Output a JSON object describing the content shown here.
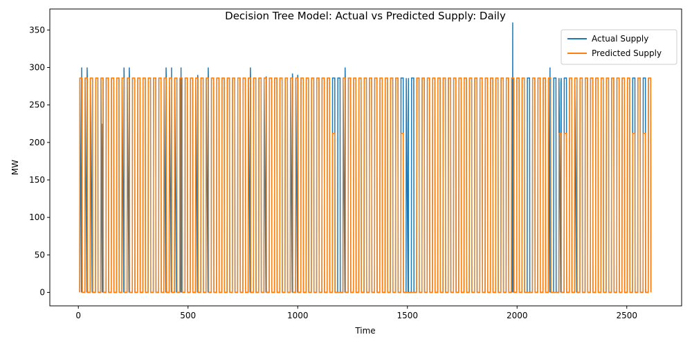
{
  "chart_data": {
    "type": "line",
    "title": "Decision Tree Model: Actual vs Predicted Supply: Daily",
    "xlabel": "Time",
    "ylabel": "MW",
    "xlim": [
      -130,
      2750
    ],
    "ylim": [
      -18,
      378
    ],
    "xticks": [
      0,
      500,
      1000,
      1500,
      2000,
      2500
    ],
    "yticks": [
      0,
      50,
      100,
      150,
      200,
      250,
      300,
      350
    ],
    "grid": false,
    "legend_position": "top-right",
    "x_range": [
      0,
      2620
    ],
    "series": [
      {
        "name": "Actual Supply",
        "color": "#1f77b4",
        "pulse_period_days": 24,
        "pulse_width_days": 12,
        "off_value": 0,
        "on_value": 286,
        "pulses": [
          {
            "x": 15,
            "y": 300
          },
          {
            "x": 40,
            "y": 300
          },
          {
            "x": 64,
            "y": 225
          },
          {
            "x": 110,
            "y": 225
          },
          {
            "x": 208,
            "y": 300
          },
          {
            "x": 232,
            "y": 300
          },
          {
            "x": 400,
            "y": 300
          },
          {
            "x": 425,
            "y": 300
          },
          {
            "x": 448,
            "y": 20
          },
          {
            "x": 468,
            "y": 300
          },
          {
            "x": 544,
            "y": 290
          },
          {
            "x": 592,
            "y": 300
          },
          {
            "x": 784,
            "y": 300
          },
          {
            "x": 856,
            "y": 288
          },
          {
            "x": 976,
            "y": 292
          },
          {
            "x": 1000,
            "y": 290
          },
          {
            "x": 1216,
            "y": 300
          },
          {
            "x": 1504,
            "y": 240
          },
          {
            "x": 1980,
            "y": 360
          },
          {
            "x": 2150,
            "y": 300
          },
          {
            "x": 2200,
            "y": 280
          },
          {
            "x": 2272,
            "y": 245
          }
        ]
      },
      {
        "name": "Predicted Supply",
        "color": "#ff7f0e",
        "pulse_period_days": 24,
        "pulse_width_days": 12,
        "off_value": 0,
        "on_value": 286,
        "lower_pulses": [
          {
            "x": 1168,
            "y": 212
          },
          {
            "x": 1480,
            "y": 212
          },
          {
            "x": 2040,
            "y": 212
          },
          {
            "x": 2184,
            "y": 212
          },
          {
            "x": 2224,
            "y": 212
          },
          {
            "x": 2530,
            "y": 212
          },
          {
            "x": 2576,
            "y": 212
          }
        ],
        "gaps": [
          [
            1172,
            1200
          ],
          [
            1484,
            1520
          ],
          [
            2032,
            2058
          ],
          [
            2160,
            2180
          ]
        ]
      }
    ]
  }
}
